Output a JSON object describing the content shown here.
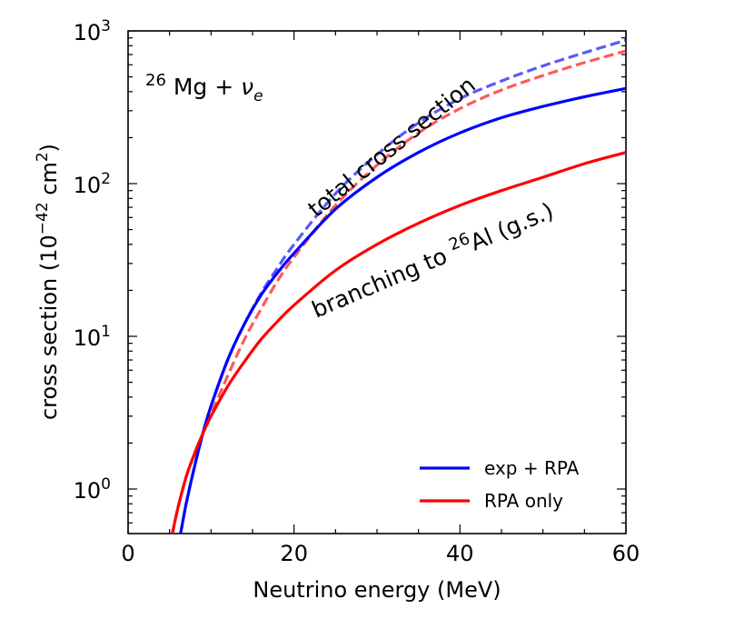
{
  "chart_data": {
    "type": "line",
    "title": "",
    "xlabel": "Neutrino energy (MeV)",
    "ylabel_parts": {
      "prefix": "cross section (10",
      "exp": "−42",
      "unit": " cm",
      "unit_exp": "2",
      "suffix": ")"
    },
    "xlim": [
      0,
      60
    ],
    "ylim": [
      0.5,
      1000
    ],
    "yscale": "log",
    "xticks": [
      {
        "value": 0,
        "label": "0"
      },
      {
        "value": 20,
        "label": "20"
      },
      {
        "value": 40,
        "label": "40"
      },
      {
        "value": 60,
        "label": "60"
      }
    ],
    "yticks": [
      {
        "value": 1,
        "base": "10",
        "exp": "0"
      },
      {
        "value": 10,
        "base": "10",
        "exp": "1"
      },
      {
        "value": 100,
        "base": "10",
        "exp": "2"
      },
      {
        "value": 1000,
        "base": "10",
        "exp": "3"
      }
    ],
    "reaction_label": {
      "mass_number": "26",
      "nucleus": " Mg + ",
      "particle": "ν",
      "sub": "e"
    },
    "annotations": {
      "total": "total cross section",
      "branching_prefix": "branching to ",
      "branching_mass": "26",
      "branching_suffix": "Al (g.s.)"
    },
    "legend": [
      {
        "label": "exp + RPA",
        "color": "#0000ff"
      },
      {
        "label": "RPA only",
        "color": "#ff0000"
      }
    ],
    "series": [
      {
        "name": "exp + RPA total",
        "color": "#0000ff",
        "dashed": true,
        "opacity": 0.65,
        "x": [
          6.3,
          7,
          8,
          9,
          10,
          12,
          14,
          16,
          18,
          20,
          25,
          30,
          35,
          40,
          45,
          50,
          55,
          60
        ],
        "y": [
          0.5,
          0.8,
          1.4,
          2.3,
          3.5,
          7,
          12,
          19,
          28,
          40,
          86,
          155,
          250,
          360,
          470,
          590,
          720,
          870
        ]
      },
      {
        "name": "RPA only total",
        "color": "#ff0000",
        "dashed": true,
        "opacity": 0.65,
        "x": [
          5.3,
          6,
          7,
          8,
          9,
          10,
          12,
          14,
          16,
          18,
          20,
          25,
          30,
          35,
          40,
          45,
          50,
          55,
          60
        ],
        "y": [
          0.5,
          0.75,
          1.2,
          1.7,
          2.3,
          3.1,
          5.5,
          9.5,
          15,
          23,
          33,
          72,
          132,
          215,
          310,
          410,
          510,
          620,
          740
        ]
      },
      {
        "name": "exp + RPA branching",
        "color": "#0000ff",
        "dashed": false,
        "opacity": 1,
        "x": [
          6.3,
          7,
          8,
          9,
          10,
          12,
          14,
          16,
          18,
          20,
          25,
          30,
          35,
          40,
          45,
          50,
          55,
          60
        ],
        "y": [
          0.5,
          0.8,
          1.4,
          2.3,
          3.5,
          7,
          12,
          18.5,
          26,
          35,
          68,
          110,
          160,
          215,
          270,
          320,
          370,
          420
        ]
      },
      {
        "name": "RPA only branching",
        "color": "#ff0000",
        "dashed": false,
        "opacity": 1,
        "x": [
          5.3,
          6,
          7,
          8,
          9,
          10,
          12,
          14,
          16,
          18,
          20,
          25,
          30,
          35,
          40,
          45,
          50,
          55,
          60
        ],
        "y": [
          0.5,
          0.75,
          1.2,
          1.7,
          2.3,
          3.0,
          4.7,
          6.8,
          9.5,
          12.5,
          16,
          27,
          40,
          55,
          72,
          90,
          110,
          135,
          160
        ]
      }
    ]
  }
}
